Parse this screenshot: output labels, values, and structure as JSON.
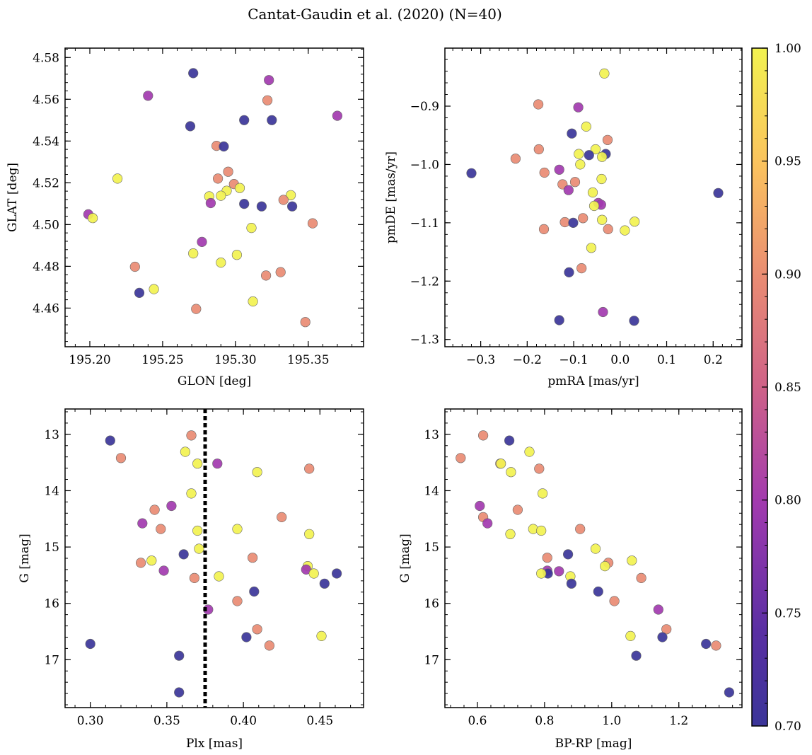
{
  "figure": {
    "title": "Cantat-Gaudin et al. (2020) (N=40)"
  },
  "colorbar": {
    "range": [
      0.7,
      1.0
    ],
    "ticks": [
      0.7,
      0.75,
      0.8,
      0.85,
      0.9,
      0.95,
      1.0
    ],
    "tick_labels": [
      "0.70",
      "0.75",
      "0.80",
      "0.85",
      "0.90",
      "0.95",
      "1.00"
    ],
    "colormap": "plasma"
  },
  "colors": {
    "c070": "#3b3599",
    "c080": "#a23aaf",
    "c090": "#e98b73",
    "c100": "#f2f250",
    "edge": "#666666",
    "vline": "#000000"
  },
  "chart_data": [
    {
      "type": "scatter",
      "id": "glon-glat",
      "xlabel": "GLON [deg]",
      "ylabel": "GLAT [deg]",
      "xlim": [
        195.183,
        195.388
      ],
      "ylim": [
        4.4415,
        4.5845
      ],
      "xticks": [
        195.2,
        195.25,
        195.3,
        195.35
      ],
      "xtick_labels": [
        "195.20",
        "195.25",
        "195.30",
        "195.35"
      ],
      "yticks": [
        4.46,
        4.48,
        4.5,
        4.52,
        4.54,
        4.56,
        4.58
      ],
      "ytick_labels": [
        "4.46",
        "4.48",
        "4.50",
        "4.52",
        "4.54",
        "4.56",
        "4.58"
      ],
      "yinvert": false,
      "points": [
        {
          "x": 195.271,
          "y": 4.5725,
          "c": 0.7
        },
        {
          "x": 195.24,
          "y": 4.5617,
          "c": 0.8
        },
        {
          "x": 195.323,
          "y": 4.5692,
          "c": 0.8
        },
        {
          "x": 195.322,
          "y": 4.5595,
          "c": 0.9
        },
        {
          "x": 195.37,
          "y": 4.5521,
          "c": 0.8
        },
        {
          "x": 195.269,
          "y": 4.5471,
          "c": 0.7
        },
        {
          "x": 195.306,
          "y": 4.55,
          "c": 0.7
        },
        {
          "x": 195.325,
          "y": 4.55,
          "c": 0.7
        },
        {
          "x": 195.287,
          "y": 4.5377,
          "c": 0.9
        },
        {
          "x": 195.292,
          "y": 4.5374,
          "c": 0.7
        },
        {
          "x": 195.295,
          "y": 4.5253,
          "c": 0.9
        },
        {
          "x": 195.288,
          "y": 4.522,
          "c": 0.9
        },
        {
          "x": 195.219,
          "y": 4.522,
          "c": 1.0
        },
        {
          "x": 195.299,
          "y": 4.5194,
          "c": 0.9
        },
        {
          "x": 195.303,
          "y": 4.5175,
          "c": 1.0
        },
        {
          "x": 195.294,
          "y": 4.5162,
          "c": 1.0
        },
        {
          "x": 195.29,
          "y": 4.5138,
          "c": 1.0
        },
        {
          "x": 195.282,
          "y": 4.5135,
          "c": 1.0
        },
        {
          "x": 195.338,
          "y": 4.5141,
          "c": 1.0
        },
        {
          "x": 195.333,
          "y": 4.5118,
          "c": 0.9
        },
        {
          "x": 195.283,
          "y": 4.5103,
          "c": 0.8
        },
        {
          "x": 195.306,
          "y": 4.5099,
          "c": 0.7
        },
        {
          "x": 195.318,
          "y": 4.5087,
          "c": 0.7
        },
        {
          "x": 195.339,
          "y": 4.5087,
          "c": 0.7
        },
        {
          "x": 195.199,
          "y": 4.5049,
          "c": 0.8
        },
        {
          "x": 195.202,
          "y": 4.5031,
          "c": 1.0
        },
        {
          "x": 195.353,
          "y": 4.5006,
          "c": 0.9
        },
        {
          "x": 195.311,
          "y": 4.4984,
          "c": 1.0
        },
        {
          "x": 195.277,
          "y": 4.4917,
          "c": 0.8
        },
        {
          "x": 195.271,
          "y": 4.4862,
          "c": 1.0
        },
        {
          "x": 195.301,
          "y": 4.4855,
          "c": 1.0
        },
        {
          "x": 195.29,
          "y": 4.4818,
          "c": 1.0
        },
        {
          "x": 195.231,
          "y": 4.4798,
          "c": 0.9
        },
        {
          "x": 195.331,
          "y": 4.4772,
          "c": 0.9
        },
        {
          "x": 195.321,
          "y": 4.4756,
          "c": 0.9
        },
        {
          "x": 195.244,
          "y": 4.4691,
          "c": 1.0
        },
        {
          "x": 195.234,
          "y": 4.4673,
          "c": 0.7
        },
        {
          "x": 195.312,
          "y": 4.4632,
          "c": 1.0
        },
        {
          "x": 195.273,
          "y": 4.4596,
          "c": 0.9
        },
        {
          "x": 195.348,
          "y": 4.4533,
          "c": 0.9
        }
      ]
    },
    {
      "type": "scatter",
      "id": "pmra-pmde",
      "xlabel": "pmRA [mas/yr]",
      "ylabel": "pmDE [mas/yr]",
      "xlim": [
        -0.377,
        0.262
      ],
      "ylim": [
        -1.3125,
        -0.8005
      ],
      "xticks": [
        -0.3,
        -0.2,
        -0.1,
        0.0,
        0.1,
        0.2
      ],
      "xtick_labels": [
        "−0.3",
        "−0.2",
        "−0.1",
        "0.0",
        "0.1",
        "0.2"
      ],
      "yticks": [
        -1.3,
        -1.2,
        -1.1,
        -1.0,
        -0.9
      ],
      "ytick_labels": [
        "−1.3",
        "−1.2",
        "−1.1",
        "−1.0",
        "−0.9"
      ],
      "yinvert": false,
      "points": [
        {
          "x": -0.034,
          "y": -0.844,
          "c": 1.0
        },
        {
          "x": -0.176,
          "y": -0.897,
          "c": 0.9
        },
        {
          "x": -0.09,
          "y": -0.902,
          "c": 0.8
        },
        {
          "x": -0.073,
          "y": -0.935,
          "c": 1.0
        },
        {
          "x": -0.104,
          "y": -0.947,
          "c": 0.7
        },
        {
          "x": -0.027,
          "y": -0.958,
          "c": 0.9
        },
        {
          "x": -0.175,
          "y": -0.974,
          "c": 0.9
        },
        {
          "x": -0.053,
          "y": -0.974,
          "c": 1.0
        },
        {
          "x": -0.089,
          "y": -0.982,
          "c": 1.0
        },
        {
          "x": -0.067,
          "y": -0.984,
          "c": 0.7
        },
        {
          "x": -0.031,
          "y": -0.982,
          "c": 0.7
        },
        {
          "x": -0.039,
          "y": -0.987,
          "c": 1.0
        },
        {
          "x": -0.225,
          "y": -0.99,
          "c": 0.9
        },
        {
          "x": -0.086,
          "y": -1.0,
          "c": 1.0
        },
        {
          "x": -0.131,
          "y": -1.009,
          "c": 0.8
        },
        {
          "x": -0.32,
          "y": -1.015,
          "c": 0.7
        },
        {
          "x": -0.163,
          "y": -1.014,
          "c": 0.9
        },
        {
          "x": -0.04,
          "y": -1.025,
          "c": 1.0
        },
        {
          "x": -0.097,
          "y": -1.03,
          "c": 0.9
        },
        {
          "x": -0.124,
          "y": -1.034,
          "c": 0.9
        },
        {
          "x": -0.111,
          "y": -1.044,
          "c": 0.8
        },
        {
          "x": -0.059,
          "y": -1.048,
          "c": 1.0
        },
        {
          "x": 0.211,
          "y": -1.049,
          "c": 0.7
        },
        {
          "x": -0.047,
          "y": -1.066,
          "c": 0.8
        },
        {
          "x": -0.041,
          "y": -1.069,
          "c": 0.8
        },
        {
          "x": -0.056,
          "y": -1.071,
          "c": 1.0
        },
        {
          "x": -0.08,
          "y": -1.092,
          "c": 0.9
        },
        {
          "x": -0.039,
          "y": -1.095,
          "c": 1.0
        },
        {
          "x": 0.031,
          "y": -1.098,
          "c": 1.0
        },
        {
          "x": -0.119,
          "y": -1.099,
          "c": 0.9
        },
        {
          "x": -0.101,
          "y": -1.1,
          "c": 0.7
        },
        {
          "x": -0.164,
          "y": -1.111,
          "c": 0.9
        },
        {
          "x": -0.026,
          "y": -1.111,
          "c": 0.9
        },
        {
          "x": 0.01,
          "y": -1.113,
          "c": 1.0
        },
        {
          "x": -0.062,
          "y": -1.143,
          "c": 1.0
        },
        {
          "x": -0.083,
          "y": -1.178,
          "c": 0.9
        },
        {
          "x": -0.11,
          "y": -1.185,
          "c": 0.7
        },
        {
          "x": -0.037,
          "y": -1.253,
          "c": 0.8
        },
        {
          "x": -0.131,
          "y": -1.267,
          "c": 0.7
        },
        {
          "x": 0.03,
          "y": -1.268,
          "c": 0.7
        }
      ]
    },
    {
      "type": "scatter",
      "id": "plx-g",
      "xlabel": "Plx [mas]",
      "ylabel": "G [mag]",
      "xlim": [
        0.2835,
        0.4785
      ],
      "ylim": [
        12.55,
        17.85
      ],
      "xticks": [
        0.3,
        0.35,
        0.4,
        0.45
      ],
      "xtick_labels": [
        "0.30",
        "0.35",
        "0.40",
        "0.45"
      ],
      "yticks": [
        13,
        14,
        15,
        16,
        17
      ],
      "ytick_labels": [
        "13",
        "14",
        "15",
        "16",
        "17"
      ],
      "yinvert": true,
      "vline": 0.375,
      "points": [
        {
          "x": 0.313,
          "y": 13.11,
          "c": 0.7
        },
        {
          "x": 0.366,
          "y": 13.02,
          "c": 0.9
        },
        {
          "x": 0.362,
          "y": 13.31,
          "c": 1.0
        },
        {
          "x": 0.32,
          "y": 13.42,
          "c": 0.9
        },
        {
          "x": 0.37,
          "y": 13.52,
          "c": 1.0
        },
        {
          "x": 0.383,
          "y": 13.52,
          "c": 0.8
        },
        {
          "x": 0.409,
          "y": 13.67,
          "c": 1.0
        },
        {
          "x": 0.443,
          "y": 13.61,
          "c": 0.9
        },
        {
          "x": 0.366,
          "y": 14.05,
          "c": 1.0
        },
        {
          "x": 0.353,
          "y": 14.27,
          "c": 0.8
        },
        {
          "x": 0.342,
          "y": 14.34,
          "c": 0.9
        },
        {
          "x": 0.425,
          "y": 14.47,
          "c": 0.9
        },
        {
          "x": 0.334,
          "y": 14.58,
          "c": 0.8
        },
        {
          "x": 0.346,
          "y": 14.68,
          "c": 0.9
        },
        {
          "x": 0.37,
          "y": 14.71,
          "c": 1.0
        },
        {
          "x": 0.396,
          "y": 14.68,
          "c": 1.0
        },
        {
          "x": 0.443,
          "y": 14.77,
          "c": 1.0
        },
        {
          "x": 0.371,
          "y": 15.03,
          "c": 1.0
        },
        {
          "x": 0.361,
          "y": 15.13,
          "c": 0.7
        },
        {
          "x": 0.406,
          "y": 15.19,
          "c": 0.9
        },
        {
          "x": 0.34,
          "y": 15.24,
          "c": 1.0
        },
        {
          "x": 0.333,
          "y": 15.28,
          "c": 0.9
        },
        {
          "x": 0.442,
          "y": 15.34,
          "c": 1.0
        },
        {
          "x": 0.348,
          "y": 15.42,
          "c": 0.8
        },
        {
          "x": 0.441,
          "y": 15.4,
          "c": 0.8
        },
        {
          "x": 0.446,
          "y": 15.47,
          "c": 1.0
        },
        {
          "x": 0.461,
          "y": 15.47,
          "c": 0.7
        },
        {
          "x": 0.384,
          "y": 15.52,
          "c": 1.0
        },
        {
          "x": 0.368,
          "y": 15.55,
          "c": 0.9
        },
        {
          "x": 0.453,
          "y": 15.65,
          "c": 0.7
        },
        {
          "x": 0.407,
          "y": 15.79,
          "c": 0.7
        },
        {
          "x": 0.396,
          "y": 15.96,
          "c": 0.9
        },
        {
          "x": 0.377,
          "y": 16.11,
          "c": 0.8
        },
        {
          "x": 0.409,
          "y": 16.46,
          "c": 0.9
        },
        {
          "x": 0.451,
          "y": 16.58,
          "c": 1.0
        },
        {
          "x": 0.402,
          "y": 16.6,
          "c": 0.7
        },
        {
          "x": 0.3,
          "y": 16.72,
          "c": 0.7
        },
        {
          "x": 0.417,
          "y": 16.75,
          "c": 0.9
        },
        {
          "x": 0.358,
          "y": 16.93,
          "c": 0.7
        },
        {
          "x": 0.358,
          "y": 17.58,
          "c": 0.7
        }
      ]
    },
    {
      "type": "scatter",
      "id": "bprp-g",
      "xlabel": "BP-RP [mag]",
      "ylabel": "G [mag]",
      "xlim": [
        0.5031,
        1.3881
      ],
      "ylim": [
        12.55,
        17.85
      ],
      "xticks": [
        0.6,
        0.8,
        1.0,
        1.2
      ],
      "xtick_labels": [
        "0.6",
        "0.8",
        "1.0",
        "1.2"
      ],
      "yticks": [
        13,
        14,
        15,
        16,
        17
      ],
      "ytick_labels": [
        "13",
        "14",
        "15",
        "16",
        "17"
      ],
      "yinvert": true,
      "points": [
        {
          "x": 0.617,
          "y": 13.02,
          "c": 0.9
        },
        {
          "x": 0.695,
          "y": 13.11,
          "c": 0.7
        },
        {
          "x": 0.755,
          "y": 13.31,
          "c": 1.0
        },
        {
          "x": 0.55,
          "y": 13.42,
          "c": 0.9
        },
        {
          "x": 0.668,
          "y": 13.52,
          "c": 0.9
        },
        {
          "x": 0.67,
          "y": 13.52,
          "c": 1.0
        },
        {
          "x": 0.7,
          "y": 13.67,
          "c": 1.0
        },
        {
          "x": 0.784,
          "y": 13.61,
          "c": 0.9
        },
        {
          "x": 0.794,
          "y": 14.05,
          "c": 1.0
        },
        {
          "x": 0.607,
          "y": 14.27,
          "c": 0.8
        },
        {
          "x": 0.72,
          "y": 14.34,
          "c": 0.9
        },
        {
          "x": 0.617,
          "y": 14.47,
          "c": 0.9
        },
        {
          "x": 0.63,
          "y": 14.58,
          "c": 0.8
        },
        {
          "x": 0.766,
          "y": 14.68,
          "c": 1.0
        },
        {
          "x": 0.79,
          "y": 14.71,
          "c": 1.0
        },
        {
          "x": 0.906,
          "y": 14.68,
          "c": 0.9
        },
        {
          "x": 0.698,
          "y": 14.77,
          "c": 1.0
        },
        {
          "x": 0.952,
          "y": 15.03,
          "c": 1.0
        },
        {
          "x": 0.87,
          "y": 15.13,
          "c": 0.7
        },
        {
          "x": 0.808,
          "y": 15.19,
          "c": 0.9
        },
        {
          "x": 1.06,
          "y": 15.24,
          "c": 1.0
        },
        {
          "x": 0.99,
          "y": 15.28,
          "c": 0.9
        },
        {
          "x": 0.98,
          "y": 15.34,
          "c": 1.0
        },
        {
          "x": 0.808,
          "y": 15.42,
          "c": 0.8
        },
        {
          "x": 0.843,
          "y": 15.43,
          "c": 0.8
        },
        {
          "x": 0.81,
          "y": 15.47,
          "c": 0.7
        },
        {
          "x": 0.79,
          "y": 15.47,
          "c": 1.0
        },
        {
          "x": 0.877,
          "y": 15.52,
          "c": 1.0
        },
        {
          "x": 1.088,
          "y": 15.55,
          "c": 0.9
        },
        {
          "x": 0.88,
          "y": 15.65,
          "c": 0.7
        },
        {
          "x": 0.96,
          "y": 15.79,
          "c": 0.7
        },
        {
          "x": 1.008,
          "y": 15.96,
          "c": 0.9
        },
        {
          "x": 1.139,
          "y": 16.11,
          "c": 0.8
        },
        {
          "x": 1.163,
          "y": 16.46,
          "c": 0.9
        },
        {
          "x": 1.056,
          "y": 16.58,
          "c": 1.0
        },
        {
          "x": 1.151,
          "y": 16.6,
          "c": 0.7
        },
        {
          "x": 1.281,
          "y": 16.72,
          "c": 0.7
        },
        {
          "x": 1.311,
          "y": 16.75,
          "c": 0.9
        },
        {
          "x": 1.073,
          "y": 16.93,
          "c": 0.7
        },
        {
          "x": 1.35,
          "y": 17.58,
          "c": 0.7
        }
      ]
    }
  ]
}
